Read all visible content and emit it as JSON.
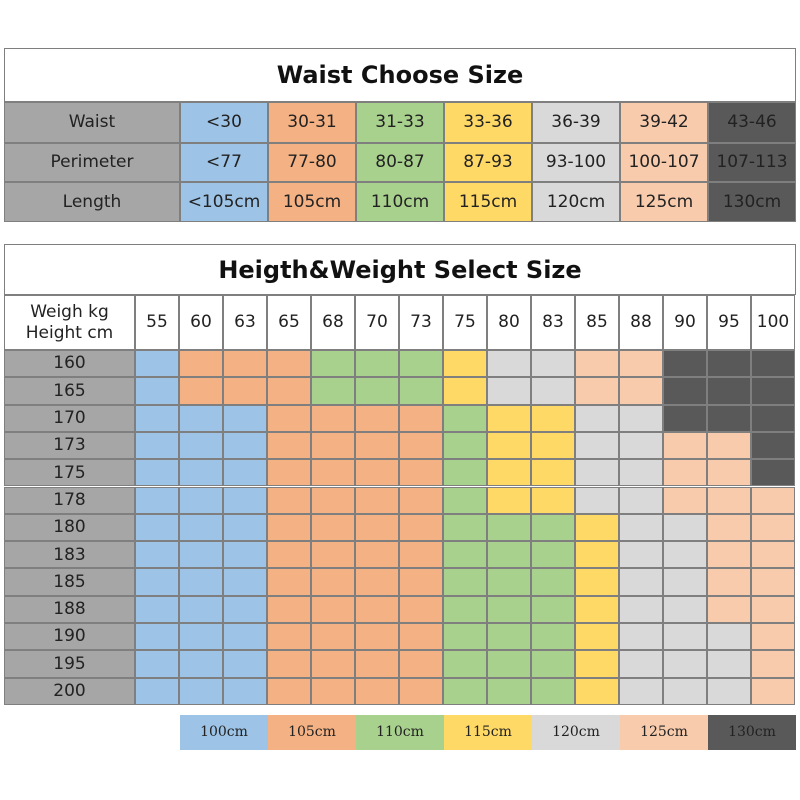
{
  "waist_table": {
    "title": "Waist Choose Size",
    "colors": [
      "#9dc3e6",
      "#f4b183",
      "#a9d18e",
      "#ffd966",
      "#d9d9d9",
      "#f8cbad",
      "#595959"
    ],
    "rows": [
      {
        "label": "Waist",
        "cells": [
          "<30",
          "30-31",
          "31-33",
          "33-36",
          "36-39",
          "39-42",
          "43-46"
        ]
      },
      {
        "label": "Perimeter",
        "cells": [
          "<77",
          "77-80",
          "80-87",
          "87-93",
          "93-100",
          "100-107",
          "107-113"
        ]
      },
      {
        "label": "Length",
        "cells": [
          "<105cm",
          "105cm",
          "110cm",
          "115cm",
          "120cm",
          "125cm",
          "130cm"
        ]
      }
    ]
  },
  "size_table": {
    "title": "Heigth&Weight Select Size",
    "corner": [
      "Weigh kg",
      "Height cm"
    ],
    "weights": [
      55,
      60,
      63,
      65,
      68,
      70,
      73,
      75,
      80,
      83,
      85,
      88,
      90,
      95,
      100
    ],
    "heights": [
      160,
      165,
      170,
      173,
      175,
      178,
      180,
      183,
      185,
      188,
      190,
      195,
      200
    ],
    "cells": [
      [
        "#9dc3e6",
        "#f4b183",
        "#f4b183",
        "#f4b183",
        "#a9d18e",
        "#a9d18e",
        "#a9d18e",
        "#ffd966",
        "#d9d9d9",
        "#d9d9d9",
        "#f8cbad",
        "#f8cbad",
        "#595959",
        "#595959",
        "#595959"
      ],
      [
        "#9dc3e6",
        "#f4b183",
        "#f4b183",
        "#f4b183",
        "#a9d18e",
        "#a9d18e",
        "#a9d18e",
        "#ffd966",
        "#d9d9d9",
        "#d9d9d9",
        "#f8cbad",
        "#f8cbad",
        "#595959",
        "#595959",
        "#595959"
      ],
      [
        "#9dc3e6",
        "#9dc3e6",
        "#9dc3e6",
        "#f4b183",
        "#f4b183",
        "#f4b183",
        "#f4b183",
        "#a9d18e",
        "#ffd966",
        "#ffd966",
        "#d9d9d9",
        "#d9d9d9",
        "#595959",
        "#595959",
        "#595959"
      ],
      [
        "#9dc3e6",
        "#9dc3e6",
        "#9dc3e6",
        "#f4b183",
        "#f4b183",
        "#f4b183",
        "#f4b183",
        "#a9d18e",
        "#ffd966",
        "#ffd966",
        "#d9d9d9",
        "#d9d9d9",
        "#f8cbad",
        "#f8cbad",
        "#595959"
      ],
      [
        "#9dc3e6",
        "#9dc3e6",
        "#9dc3e6",
        "#f4b183",
        "#f4b183",
        "#f4b183",
        "#f4b183",
        "#a9d18e",
        "#ffd966",
        "#ffd966",
        "#d9d9d9",
        "#d9d9d9",
        "#f8cbad",
        "#f8cbad",
        "#595959"
      ],
      [
        "#9dc3e6",
        "#9dc3e6",
        "#9dc3e6",
        "#f4b183",
        "#f4b183",
        "#f4b183",
        "#f4b183",
        "#a9d18e",
        "#ffd966",
        "#ffd966",
        "#d9d9d9",
        "#d9d9d9",
        "#f8cbad",
        "#f8cbad",
        "#f8cbad"
      ],
      [
        "#9dc3e6",
        "#9dc3e6",
        "#9dc3e6",
        "#f4b183",
        "#f4b183",
        "#f4b183",
        "#f4b183",
        "#a9d18e",
        "#a9d18e",
        "#a9d18e",
        "#ffd966",
        "#d9d9d9",
        "#d9d9d9",
        "#f8cbad",
        "#f8cbad"
      ],
      [
        "#9dc3e6",
        "#9dc3e6",
        "#9dc3e6",
        "#f4b183",
        "#f4b183",
        "#f4b183",
        "#f4b183",
        "#a9d18e",
        "#a9d18e",
        "#a9d18e",
        "#ffd966",
        "#d9d9d9",
        "#d9d9d9",
        "#f8cbad",
        "#f8cbad"
      ],
      [
        "#9dc3e6",
        "#9dc3e6",
        "#9dc3e6",
        "#f4b183",
        "#f4b183",
        "#f4b183",
        "#f4b183",
        "#a9d18e",
        "#a9d18e",
        "#a9d18e",
        "#ffd966",
        "#d9d9d9",
        "#d9d9d9",
        "#f8cbad",
        "#f8cbad"
      ],
      [
        "#9dc3e6",
        "#9dc3e6",
        "#9dc3e6",
        "#f4b183",
        "#f4b183",
        "#f4b183",
        "#f4b183",
        "#a9d18e",
        "#a9d18e",
        "#a9d18e",
        "#ffd966",
        "#d9d9d9",
        "#d9d9d9",
        "#f8cbad",
        "#f8cbad"
      ],
      [
        "#9dc3e6",
        "#9dc3e6",
        "#9dc3e6",
        "#f4b183",
        "#f4b183",
        "#f4b183",
        "#f4b183",
        "#a9d18e",
        "#a9d18e",
        "#a9d18e",
        "#ffd966",
        "#d9d9d9",
        "#d9d9d9",
        "#d9d9d9",
        "#f8cbad"
      ],
      [
        "#9dc3e6",
        "#9dc3e6",
        "#9dc3e6",
        "#f4b183",
        "#f4b183",
        "#f4b183",
        "#f4b183",
        "#a9d18e",
        "#a9d18e",
        "#a9d18e",
        "#ffd966",
        "#d9d9d9",
        "#d9d9d9",
        "#d9d9d9",
        "#f8cbad"
      ],
      [
        "#9dc3e6",
        "#9dc3e6",
        "#9dc3e6",
        "#f4b183",
        "#f4b183",
        "#f4b183",
        "#f4b183",
        "#a9d18e",
        "#a9d18e",
        "#a9d18e",
        "#ffd966",
        "#d9d9d9",
        "#d9d9d9",
        "#d9d9d9",
        "#f8cbad"
      ]
    ]
  },
  "legend": {
    "labels": [
      "100cm",
      "105cm",
      "110cm",
      "115cm",
      "120cm",
      "125cm",
      "130cm"
    ],
    "colors": [
      "#9dc3e6",
      "#f4b183",
      "#a9d18e",
      "#ffd966",
      "#d9d9d9",
      "#f8cbad",
      "#595959"
    ]
  }
}
